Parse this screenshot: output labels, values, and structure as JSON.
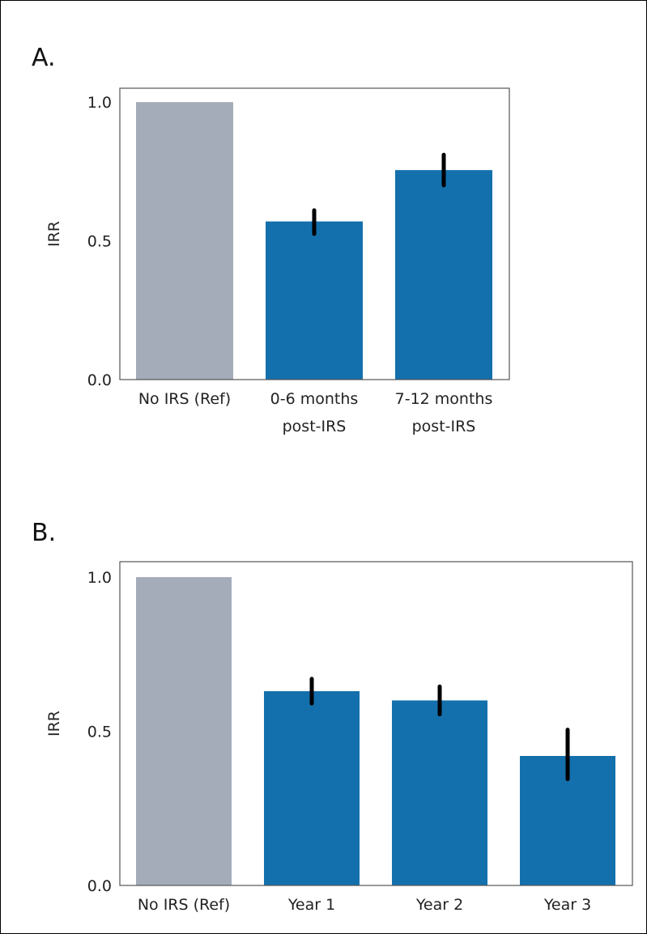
{
  "chart_data": [
    {
      "type": "bar",
      "panel_label": "A.",
      "categories": [
        [
          "No IRS (Ref)"
        ],
        [
          "0-6 months",
          "post-IRS"
        ],
        [
          "7-12 months",
          "post-IRS"
        ]
      ],
      "values": [
        1.0,
        0.57,
        0.755
      ],
      "error_low": [
        null,
        0.525,
        0.7
      ],
      "error_high": [
        null,
        0.61,
        0.81
      ],
      "ylabel": "IRR",
      "ylim": [
        0,
        1.05
      ],
      "yticks": [
        "0.0",
        "0.5",
        "1.0"
      ],
      "colors": [
        "#a3acb8",
        "#1470ad",
        "#1470ad"
      ],
      "error_color": "#000000",
      "grid": false,
      "legend": "none"
    },
    {
      "type": "bar",
      "panel_label": "B.",
      "categories": [
        [
          "No IRS (Ref)"
        ],
        [
          "Year 1"
        ],
        [
          "Year 2"
        ],
        [
          "Year 3"
        ]
      ],
      "values": [
        1.0,
        0.63,
        0.6,
        0.42
      ],
      "error_low": [
        null,
        0.59,
        0.555,
        0.345
      ],
      "error_high": [
        null,
        0.67,
        0.645,
        0.505
      ],
      "ylabel": "IRR",
      "ylim": [
        0,
        1.05
      ],
      "yticks": [
        "0.0",
        "0.5",
        "1.0"
      ],
      "colors": [
        "#a3acb8",
        "#1470ad",
        "#1470ad",
        "#1470ad"
      ],
      "error_color": "#000000",
      "grid": false,
      "legend": "none"
    }
  ]
}
